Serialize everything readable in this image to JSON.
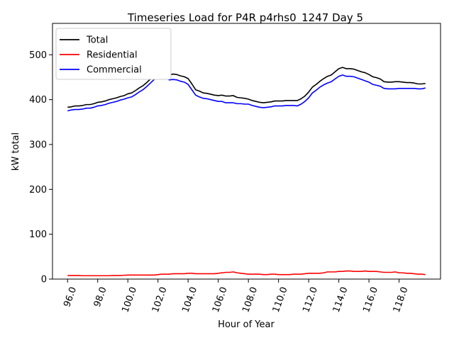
{
  "chart_data": {
    "type": "line",
    "title": "Timeseries Load for P4R p4rhs0_1247  Day 5",
    "xlabel": "Hour of Year",
    "ylabel": "kW total",
    "xlim": [
      95.0,
      120.75
    ],
    "ylim": [
      0,
      570
    ],
    "xticks": [
      96.0,
      98.0,
      100.0,
      102.0,
      104.0,
      106.0,
      108.0,
      110.0,
      112.0,
      114.0,
      116.0,
      118.0
    ],
    "xtick_labels": [
      "96.0",
      "98.0",
      "100.0",
      "102.0",
      "104.0",
      "106.0",
      "108.0",
      "110.0",
      "112.0",
      "114.0",
      "116.0",
      "118.0"
    ],
    "yticks": [
      0,
      100,
      200,
      300,
      400,
      500
    ],
    "ytick_labels": [
      "0",
      "100",
      "200",
      "300",
      "400",
      "500"
    ],
    "grid": false,
    "legend_position": "top-left",
    "x": [
      96.0,
      96.25,
      96.5,
      96.75,
      97.0,
      97.25,
      97.5,
      97.75,
      98.0,
      98.25,
      98.5,
      98.75,
      99.0,
      99.25,
      99.5,
      99.75,
      100.0,
      100.25,
      100.5,
      100.75,
      101.0,
      101.25,
      101.5,
      101.75,
      102.0,
      102.25,
      102.5,
      102.75,
      103.0,
      103.25,
      103.5,
      103.75,
      104.0,
      104.25,
      104.5,
      104.75,
      105.0,
      105.25,
      105.5,
      105.75,
      106.0,
      106.25,
      106.5,
      106.75,
      107.0,
      107.25,
      107.5,
      107.75,
      108.0,
      108.25,
      108.5,
      108.75,
      109.0,
      109.25,
      109.5,
      109.75,
      110.0,
      110.25,
      110.5,
      110.75,
      111.0,
      111.25,
      111.5,
      111.75,
      112.0,
      112.25,
      112.5,
      112.75,
      113.0,
      113.25,
      113.5,
      113.75,
      114.0,
      114.25,
      114.5,
      114.75,
      115.0,
      115.25,
      115.5,
      115.75,
      116.0,
      116.25,
      116.5,
      116.75,
      117.0,
      117.25,
      117.5,
      117.75,
      118.0,
      118.25,
      118.5,
      118.75,
      119.0,
      119.25,
      119.5,
      119.75
    ],
    "series": [
      {
        "name": "Total",
        "color": "#000000",
        "values": [
          383,
          384,
          386,
          386,
          387,
          389,
          389,
          391,
          394,
          395,
          397,
          400,
          402,
          404,
          407,
          409,
          413,
          415,
          420,
          426,
          431,
          438,
          446,
          454,
          461,
          459,
          460,
          455,
          457,
          456,
          453,
          451,
          447,
          435,
          422,
          419,
          415,
          414,
          412,
          410,
          409,
          410,
          408,
          408,
          409,
          405,
          404,
          403,
          401,
          398,
          396,
          394,
          393,
          394,
          395,
          397,
          397,
          397,
          398,
          398,
          398,
          398,
          402,
          408,
          417,
          428,
          434,
          441,
          447,
          452,
          455,
          462,
          469,
          472,
          469,
          469,
          468,
          465,
          462,
          460,
          456,
          451,
          449,
          446,
          440,
          439,
          439,
          440,
          440,
          439,
          438,
          438,
          437,
          435,
          435,
          436
        ]
      },
      {
        "name": "Residential",
        "color": "#ff0000",
        "values": [
          8,
          8,
          8,
          8,
          7.5,
          7.5,
          7.5,
          7.5,
          7.5,
          7.5,
          7.5,
          7.5,
          8,
          8,
          8,
          8.5,
          9,
          9,
          9,
          9,
          9,
          9,
          9,
          9,
          10,
          11,
          11,
          11,
          12,
          12,
          12,
          12,
          13,
          13,
          12,
          12,
          12,
          12,
          12,
          12,
          13,
          14,
          15,
          15,
          16,
          14,
          13,
          12,
          11,
          11,
          11,
          11,
          10,
          10,
          11,
          11,
          10,
          10,
          10,
          10,
          11,
          11,
          11,
          12,
          13,
          13,
          13,
          13,
          14,
          16,
          16,
          16,
          17,
          17,
          18,
          18,
          17,
          17,
          17,
          18,
          17,
          17,
          17,
          16,
          15,
          15,
          15,
          16,
          14,
          14,
          13,
          13,
          12,
          11,
          11,
          10
        ]
      },
      {
        "name": "Commercial",
        "color": "#0000ff",
        "values": [
          375,
          377,
          378,
          378,
          379,
          381,
          381,
          383,
          386,
          387,
          389,
          392,
          394,
          396,
          399,
          401,
          404,
          406,
          411,
          417,
          422,
          429,
          437,
          445,
          451,
          448,
          449,
          444,
          445,
          444,
          441,
          439,
          434,
          422,
          410,
          406,
          403,
          402,
          400,
          398,
          396,
          396,
          393,
          393,
          393,
          391,
          391,
          390,
          390,
          387,
          385,
          383,
          382,
          383,
          384,
          386,
          386,
          386,
          387,
          387,
          387,
          386,
          390,
          396,
          404,
          415,
          421,
          428,
          433,
          437,
          440,
          446,
          452,
          455,
          452,
          452,
          451,
          448,
          445,
          442,
          439,
          434,
          432,
          430,
          425,
          424,
          424,
          424,
          425,
          425,
          425,
          425,
          425,
          424,
          424,
          426
        ]
      }
    ]
  }
}
